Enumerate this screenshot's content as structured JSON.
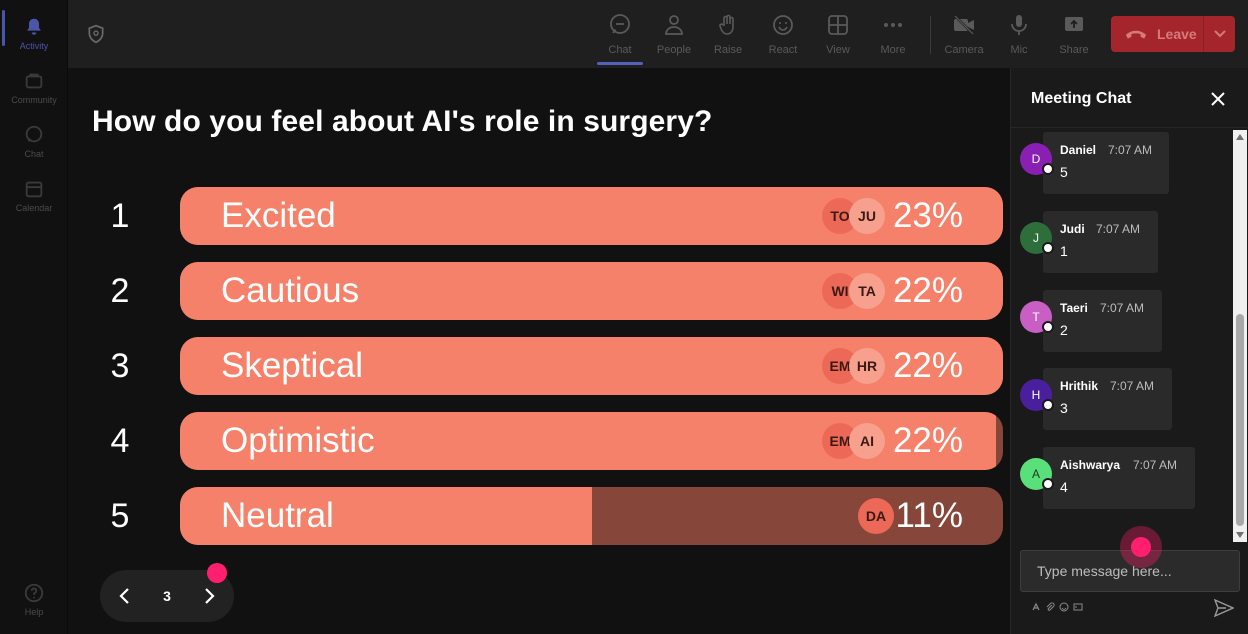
{
  "rail": {
    "items": [
      {
        "label": "Activity",
        "icon": "bell-icon",
        "active": true
      },
      {
        "label": "Community",
        "icon": "community-icon"
      },
      {
        "label": "Chat",
        "icon": "chat-icon"
      },
      {
        "label": "Calendar",
        "icon": "calendar-icon"
      },
      {
        "label": "Help",
        "icon": "help-icon"
      }
    ]
  },
  "toolbar": {
    "chat": "Chat",
    "people": "People",
    "raise": "Raise",
    "react": "React",
    "view": "View",
    "more": "More",
    "camera": "Camera",
    "mic": "Mic",
    "share": "Share",
    "leave": "Leave"
  },
  "poll": {
    "question": "How do you feel about AI's role in surgery?",
    "options": [
      {
        "num": "1",
        "label": "Excited",
        "pct": "23%",
        "fill": 1.0,
        "avatars": [
          "TO",
          "JU"
        ]
      },
      {
        "num": "2",
        "label": "Cautious",
        "pct": "22%",
        "fill": 1.0,
        "avatars": [
          "WI",
          "TA"
        ]
      },
      {
        "num": "3",
        "label": "Skeptical",
        "pct": "22%",
        "fill": 1.0,
        "avatars": [
          "EM",
          "HR"
        ]
      },
      {
        "num": "4",
        "label": "Optimistic",
        "pct": "22%",
        "fill": 0.992,
        "avatars": [
          "EM",
          "AI"
        ]
      },
      {
        "num": "5",
        "label": "Neutral",
        "pct": "11%",
        "fill": 0.5,
        "avatars": [
          "DA"
        ]
      }
    ],
    "page": "3"
  },
  "chat": {
    "title": "Meeting Chat",
    "messages": [
      {
        "initial": "D",
        "sender": "Daniel",
        "time": "7:07 AM",
        "text": "5",
        "color": "#8a1fb3"
      },
      {
        "initial": "J",
        "sender": "Judi",
        "time": "7:07 AM",
        "text": "1",
        "color": "#2e6e3a"
      },
      {
        "initial": "T",
        "sender": "Taeri",
        "time": "7:07 AM",
        "text": "2",
        "color": "#c95fc4"
      },
      {
        "initial": "H",
        "sender": "Hrithik",
        "time": "7:07 AM",
        "text": "3",
        "color": "#4a1f9e"
      },
      {
        "initial": "A",
        "sender": "Aishwarya",
        "time": "7:07 AM",
        "text": "4",
        "color": "#59e07a"
      }
    ],
    "placeholder": "Type message here..."
  },
  "colors": {
    "bar_fill": "#f5816a",
    "bar_track": "#87463a",
    "leave": "#a4262c",
    "accent": "#5560b8",
    "pink_dot": "#ff1f6e"
  }
}
